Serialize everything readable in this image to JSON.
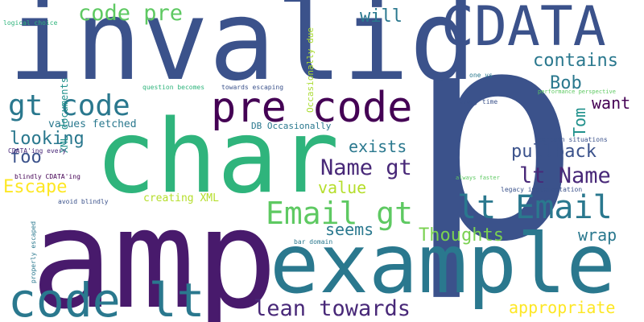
{
  "words": [
    {
      "text": "p",
      "color": "#3b528b"
    },
    {
      "text": "amp",
      "color": "#481a6c"
    },
    {
      "text": "invalid",
      "color": "#3b528b"
    },
    {
      "text": "char",
      "color": "#2fb47c"
    },
    {
      "text": "example",
      "color": "#2a788e"
    },
    {
      "text": "CDATA",
      "color": "#3b528b"
    },
    {
      "text": "code lt",
      "color": "#2a788e"
    },
    {
      "text": "pre code",
      "color": "#440154"
    },
    {
      "text": "gt code",
      "color": "#2a788e"
    },
    {
      "text": "lt Email",
      "color": "#2a788e"
    },
    {
      "text": "Email gt",
      "color": "#5ec962"
    },
    {
      "text": "code pre",
      "color": "#5ec962"
    },
    {
      "text": "lean towards",
      "color": "#482878"
    },
    {
      "text": "Name gt",
      "color": "#482878"
    },
    {
      "text": "lt Name",
      "color": "#482878"
    },
    {
      "text": "will",
      "color": "#2a788e"
    },
    {
      "text": "contains",
      "color": "#2a788e"
    },
    {
      "text": "Bob",
      "color": "#2a788e"
    },
    {
      "text": "want",
      "color": "#440154"
    },
    {
      "text": "Tom",
      "color": "#21918c"
    },
    {
      "text": "pullback",
      "color": "#3b528b"
    },
    {
      "text": "looking",
      "color": "#2a788e"
    },
    {
      "text": "foo",
      "color": "#3b528b"
    },
    {
      "text": "exists",
      "color": "#2a788e"
    },
    {
      "text": "Escape",
      "color": "#fde725"
    },
    {
      "text": "value",
      "color": "#b5de2b"
    },
    {
      "text": "seems",
      "color": "#2a788e"
    },
    {
      "text": "Thoughts",
      "color": "#7ad151"
    },
    {
      "text": "wrap",
      "color": "#2a788e"
    },
    {
      "text": "appropriate",
      "color": "#fde725"
    },
    {
      "text": "values fetched",
      "color": "#2a788e"
    },
    {
      "text": "creating XML",
      "color": "#b5de2b"
    },
    {
      "text": "XML documents",
      "color": "#21918c"
    },
    {
      "text": "Occasionally due",
      "color": "#aadc32"
    },
    {
      "text": "DB Occasionally",
      "color": "#2a788e"
    },
    {
      "text": "question becomes",
      "color": "#2fb47c"
    },
    {
      "text": "towards escaping",
      "color": "#3b528b"
    },
    {
      "text": "logical choice",
      "color": "#2fb47c"
    },
    {
      "text": "CDATA'ing every",
      "color": "#482878"
    },
    {
      "text": "blindly CDATA'ing",
      "color": "#440154"
    },
    {
      "text": "avoid blindly",
      "color": "#3b528b"
    },
    {
      "text": "properly escaped",
      "color": "#2a788e"
    },
    {
      "text": "bar domain",
      "color": "#2a788e"
    },
    {
      "text": "one vs",
      "color": "#2a788e"
    },
    {
      "text": "every time",
      "color": "#3b528b"
    },
    {
      "text": "performance perspective",
      "color": "#5ec962"
    },
    {
      "text": "certain situations",
      "color": "#3b528b"
    },
    {
      "text": "always faster",
      "color": "#5ec962"
    },
    {
      "text": "legacy implementation",
      "color": "#3b528b"
    }
  ]
}
